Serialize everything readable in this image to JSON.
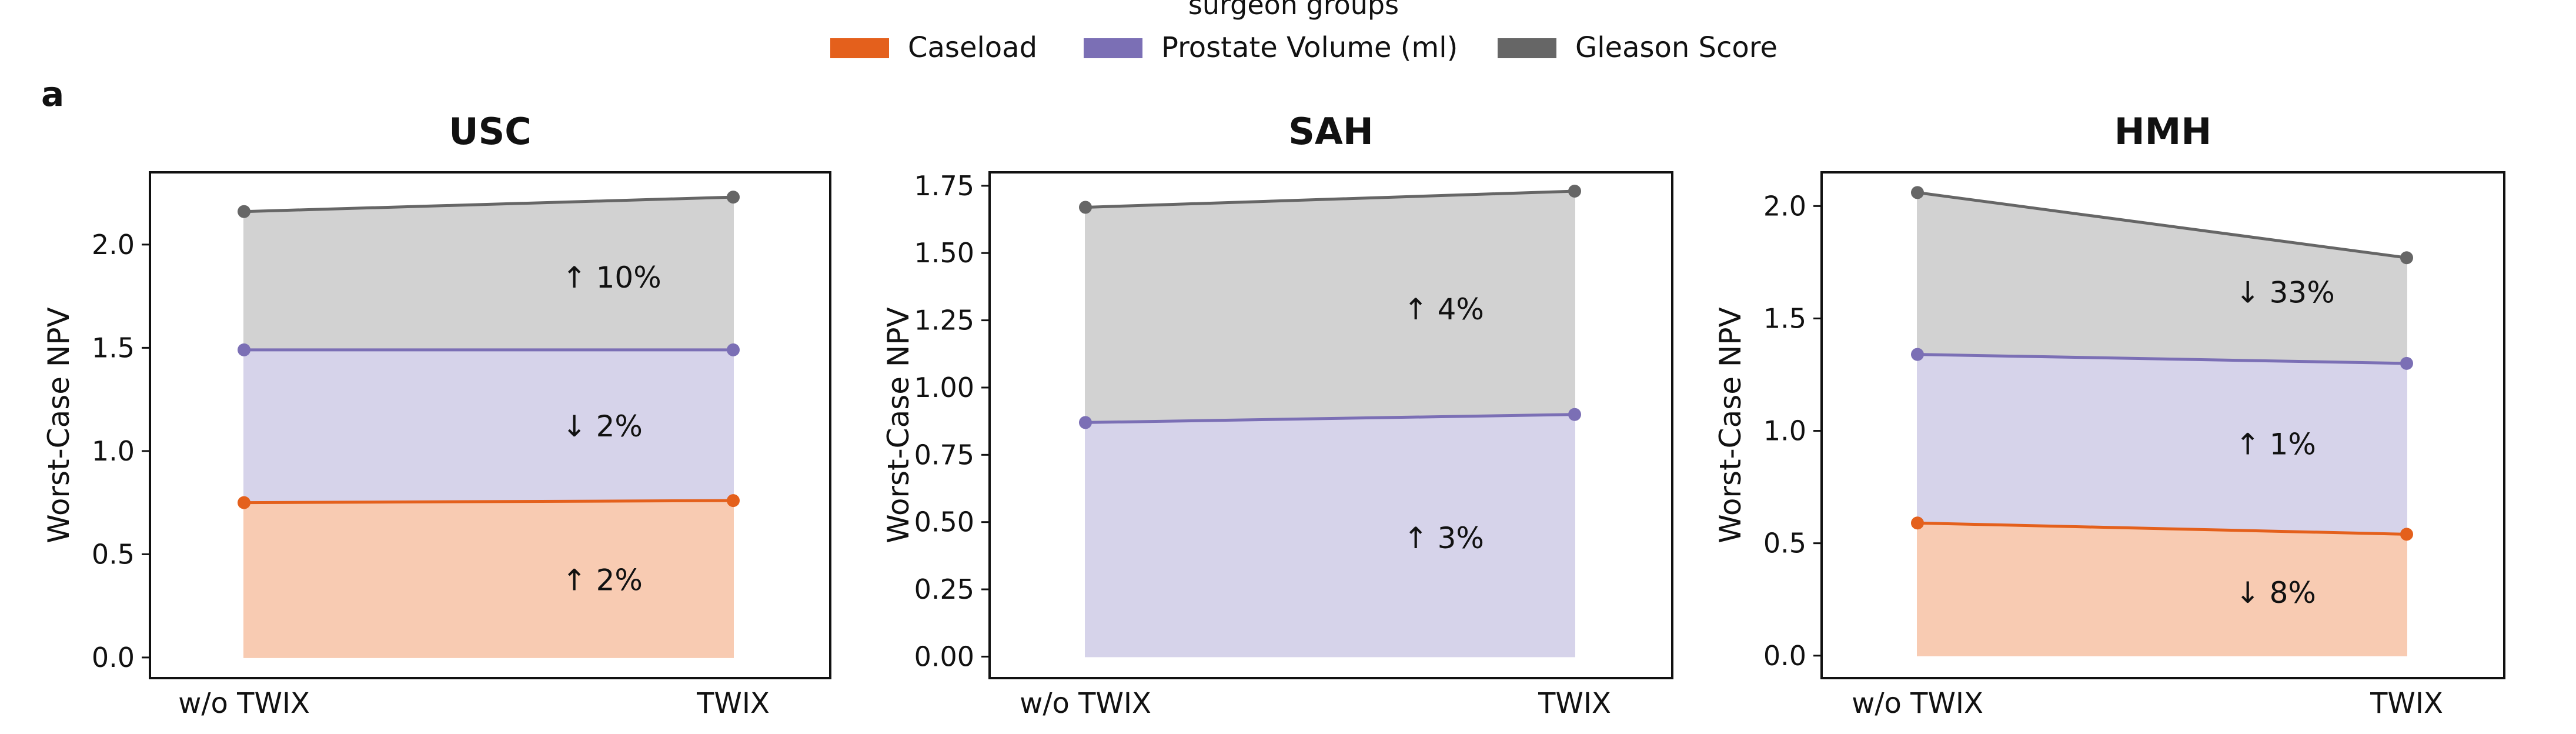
{
  "legend": {
    "title": "surgeon groups",
    "items": [
      {
        "label": "Caseload",
        "color": "#E4601C"
      },
      {
        "label": "Prostate Volume (ml)",
        "color": "#7B6FB5"
      },
      {
        "label": "Gleason Score",
        "color": "#666666"
      }
    ]
  },
  "panel_label": "a",
  "chart_data": [
    {
      "type": "area",
      "title": "USC",
      "ylabel": "Worst-Case NPV",
      "categories": [
        "w/o TWIX",
        "TWIX"
      ],
      "ylim": [
        -0.1,
        2.35
      ],
      "yticks": [
        "0.0",
        "0.5",
        "1.0",
        "1.5",
        "2.0"
      ],
      "stacked": true,
      "series": [
        {
          "name": "Caseload",
          "values": [
            0.75,
            0.76
          ],
          "annotation": "↑ 2%"
        },
        {
          "name": "Prostate Volume (ml)",
          "values": [
            1.49,
            1.49
          ],
          "annotation": "↓ 2%"
        },
        {
          "name": "Gleason Score",
          "values": [
            2.16,
            2.23
          ],
          "annotation": "↑ 10%"
        }
      ]
    },
    {
      "type": "area",
      "title": "SAH",
      "ylabel": "Worst-Case NPV",
      "categories": [
        "w/o TWIX",
        "TWIX"
      ],
      "ylim": [
        -0.08,
        1.8
      ],
      "yticks": [
        "0.00",
        "0.25",
        "0.50",
        "0.75",
        "1.00",
        "1.25",
        "1.50",
        "1.75"
      ],
      "stacked": true,
      "series": [
        {
          "name": "Prostate Volume (ml)",
          "values": [
            0.87,
            0.9
          ],
          "annotation": "↑ 3%"
        },
        {
          "name": "Gleason Score",
          "values": [
            1.67,
            1.73
          ],
          "annotation": "↑ 4%"
        }
      ]
    },
    {
      "type": "area",
      "title": "HMH",
      "ylabel": "Worst-Case NPV",
      "categories": [
        "w/o TWIX",
        "TWIX"
      ],
      "ylim": [
        -0.1,
        2.15
      ],
      "yticks": [
        "0.0",
        "0.5",
        "1.0",
        "1.5",
        "2.0"
      ],
      "stacked": true,
      "series": [
        {
          "name": "Caseload",
          "values": [
            0.59,
            0.54
          ],
          "annotation": "↓ 8%"
        },
        {
          "name": "Prostate Volume (ml)",
          "values": [
            1.34,
            1.3
          ],
          "annotation": "↑ 1%"
        },
        {
          "name": "Gleason Score",
          "values": [
            2.06,
            1.77
          ],
          "annotation": "↓ 33%"
        }
      ]
    }
  ]
}
